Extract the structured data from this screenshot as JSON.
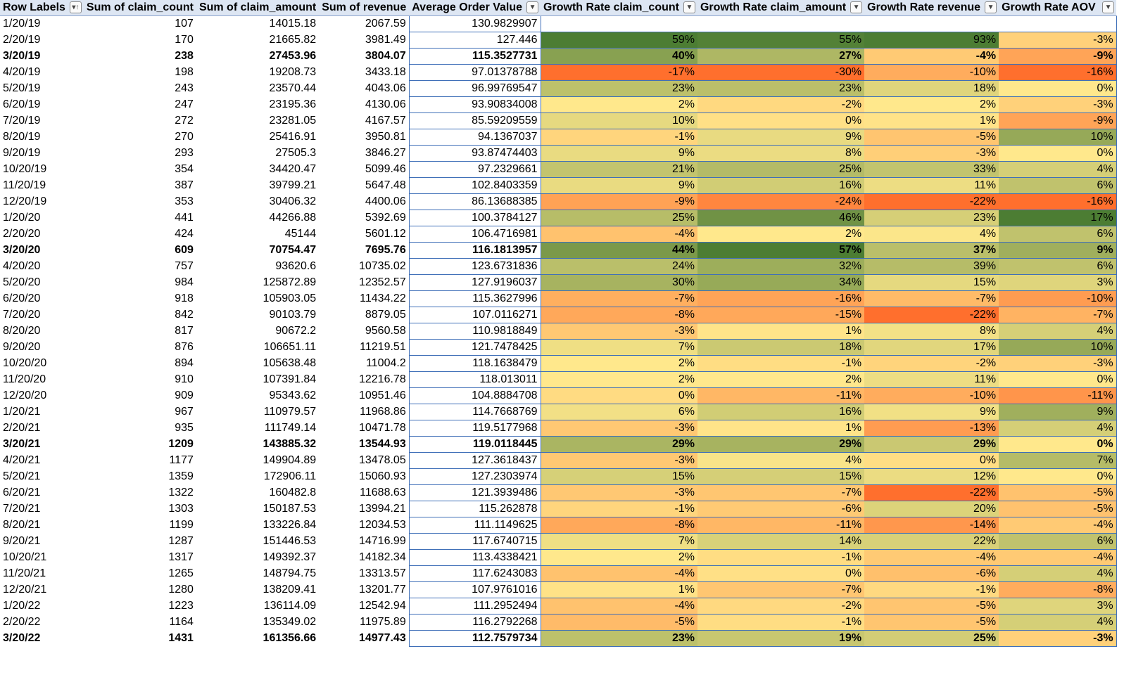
{
  "colors": {
    "border": "#3f6fb8",
    "header_bg": "#dde6f3",
    "scale_low": "#ff6f2d",
    "scale_mid": "#ffe88c",
    "scale_high": "#4c7d33"
  },
  "header": {
    "row_labels": "Row Labels",
    "sum_claim_count": "Sum of claim_count",
    "sum_claim_amount": "Sum of claim_amount",
    "sum_revenue": "Sum of revenue",
    "aov": "Average Order Value",
    "gr_claim_count": "Growth Rate claim_count",
    "gr_claim_amount": "Growth Rate claim_amount",
    "gr_revenue": "Growth Rate revenue",
    "gr_aov": "Growth Rate AOV",
    "sort_filter_icon": "filter-sort-icon",
    "dropdown_icon": "dropdown-arrow-icon"
  },
  "rows": [
    {
      "label": "1/20/19",
      "count": "107",
      "amount": "14015.18",
      "revenue": "2067.59",
      "aov": "130.9829907",
      "g1": "",
      "g2": "",
      "g3": "",
      "g4": "",
      "bold": false
    },
    {
      "label": "2/20/19",
      "count": "170",
      "amount": "21665.82",
      "revenue": "3981.49",
      "aov": "127.446",
      "g1": "59%",
      "g2": "55%",
      "g3": "93%",
      "g4": "-3%",
      "bold": false
    },
    {
      "label": "3/20/19",
      "count": "238",
      "amount": "27453.96",
      "revenue": "3804.07",
      "aov": "115.3527731",
      "g1": "40%",
      "g2": "27%",
      "g3": "-4%",
      "g4": "-9%",
      "bold": true
    },
    {
      "label": "4/20/19",
      "count": "198",
      "amount": "19208.73",
      "revenue": "3433.18",
      "aov": "97.01378788",
      "g1": "-17%",
      "g2": "-30%",
      "g3": "-10%",
      "g4": "-16%",
      "bold": false
    },
    {
      "label": "5/20/19",
      "count": "243",
      "amount": "23570.44",
      "revenue": "4043.06",
      "aov": "96.99769547",
      "g1": "23%",
      "g2": "23%",
      "g3": "18%",
      "g4": "0%",
      "bold": false
    },
    {
      "label": "6/20/19",
      "count": "247",
      "amount": "23195.36",
      "revenue": "4130.06",
      "aov": "93.90834008",
      "g1": "2%",
      "g2": "-2%",
      "g3": "2%",
      "g4": "-3%",
      "bold": false
    },
    {
      "label": "7/20/19",
      "count": "272",
      "amount": "23281.05",
      "revenue": "4167.57",
      "aov": "85.59209559",
      "g1": "10%",
      "g2": "0%",
      "g3": "1%",
      "g4": "-9%",
      "bold": false
    },
    {
      "label": "8/20/19",
      "count": "270",
      "amount": "25416.91",
      "revenue": "3950.81",
      "aov": "94.1367037",
      "g1": "-1%",
      "g2": "9%",
      "g3": "-5%",
      "g4": "10%",
      "bold": false
    },
    {
      "label": "9/20/19",
      "count": "293",
      "amount": "27505.3",
      "revenue": "3846.27",
      "aov": "93.87474403",
      "g1": "9%",
      "g2": "8%",
      "g3": "-3%",
      "g4": "0%",
      "bold": false
    },
    {
      "label": "10/20/19",
      "count": "354",
      "amount": "34420.47",
      "revenue": "5099.46",
      "aov": "97.2329661",
      "g1": "21%",
      "g2": "25%",
      "g3": "33%",
      "g4": "4%",
      "bold": false
    },
    {
      "label": "11/20/19",
      "count": "387",
      "amount": "39799.21",
      "revenue": "5647.48",
      "aov": "102.8403359",
      "g1": "9%",
      "g2": "16%",
      "g3": "11%",
      "g4": "6%",
      "bold": false
    },
    {
      "label": "12/20/19",
      "count": "353",
      "amount": "30406.32",
      "revenue": "4400.06",
      "aov": "86.13688385",
      "g1": "-9%",
      "g2": "-24%",
      "g3": "-22%",
      "g4": "-16%",
      "bold": false
    },
    {
      "label": "1/20/20",
      "count": "441",
      "amount": "44266.88",
      "revenue": "5392.69",
      "aov": "100.3784127",
      "g1": "25%",
      "g2": "46%",
      "g3": "23%",
      "g4": "17%",
      "bold": false
    },
    {
      "label": "2/20/20",
      "count": "424",
      "amount": "45144",
      "revenue": "5601.12",
      "aov": "106.4716981",
      "g1": "-4%",
      "g2": "2%",
      "g3": "4%",
      "g4": "6%",
      "bold": false
    },
    {
      "label": "3/20/20",
      "count": "609",
      "amount": "70754.47",
      "revenue": "7695.76",
      "aov": "116.1813957",
      "g1": "44%",
      "g2": "57%",
      "g3": "37%",
      "g4": "9%",
      "bold": true
    },
    {
      "label": "4/20/20",
      "count": "757",
      "amount": "93620.6",
      "revenue": "10735.02",
      "aov": "123.6731836",
      "g1": "24%",
      "g2": "32%",
      "g3": "39%",
      "g4": "6%",
      "bold": false
    },
    {
      "label": "5/20/20",
      "count": "984",
      "amount": "125872.89",
      "revenue": "12352.57",
      "aov": "127.9196037",
      "g1": "30%",
      "g2": "34%",
      "g3": "15%",
      "g4": "3%",
      "bold": false
    },
    {
      "label": "6/20/20",
      "count": "918",
      "amount": "105903.05",
      "revenue": "11434.22",
      "aov": "115.3627996",
      "g1": "-7%",
      "g2": "-16%",
      "g3": "-7%",
      "g4": "-10%",
      "bold": false
    },
    {
      "label": "7/20/20",
      "count": "842",
      "amount": "90103.79",
      "revenue": "8879.05",
      "aov": "107.0116271",
      "g1": "-8%",
      "g2": "-15%",
      "g3": "-22%",
      "g4": "-7%",
      "bold": false
    },
    {
      "label": "8/20/20",
      "count": "817",
      "amount": "90672.2",
      "revenue": "9560.58",
      "aov": "110.9818849",
      "g1": "-3%",
      "g2": "1%",
      "g3": "8%",
      "g4": "4%",
      "bold": false
    },
    {
      "label": "9/20/20",
      "count": "876",
      "amount": "106651.11",
      "revenue": "11219.51",
      "aov": "121.7478425",
      "g1": "7%",
      "g2": "18%",
      "g3": "17%",
      "g4": "10%",
      "bold": false
    },
    {
      "label": "10/20/20",
      "count": "894",
      "amount": "105638.48",
      "revenue": "11004.2",
      "aov": "118.1638479",
      "g1": "2%",
      "g2": "-1%",
      "g3": "-2%",
      "g4": "-3%",
      "bold": false
    },
    {
      "label": "11/20/20",
      "count": "910",
      "amount": "107391.84",
      "revenue": "12216.78",
      "aov": "118.013011",
      "g1": "2%",
      "g2": "2%",
      "g3": "11%",
      "g4": "0%",
      "bold": false
    },
    {
      "label": "12/20/20",
      "count": "909",
      "amount": "95343.62",
      "revenue": "10951.46",
      "aov": "104.8884708",
      "g1": "0%",
      "g2": "-11%",
      "g3": "-10%",
      "g4": "-11%",
      "bold": false
    },
    {
      "label": "1/20/21",
      "count": "967",
      "amount": "110979.57",
      "revenue": "11968.86",
      "aov": "114.7668769",
      "g1": "6%",
      "g2": "16%",
      "g3": "9%",
      "g4": "9%",
      "bold": false
    },
    {
      "label": "2/20/21",
      "count": "935",
      "amount": "111749.14",
      "revenue": "10471.78",
      "aov": "119.5177968",
      "g1": "-3%",
      "g2": "1%",
      "g3": "-13%",
      "g4": "4%",
      "bold": false
    },
    {
      "label": "3/20/21",
      "count": "1209",
      "amount": "143885.32",
      "revenue": "13544.93",
      "aov": "119.0118445",
      "g1": "29%",
      "g2": "29%",
      "g3": "29%",
      "g4": "0%",
      "bold": true
    },
    {
      "label": "4/20/21",
      "count": "1177",
      "amount": "149904.89",
      "revenue": "13478.05",
      "aov": "127.3618437",
      "g1": "-3%",
      "g2": "4%",
      "g3": "0%",
      "g4": "7%",
      "bold": false
    },
    {
      "label": "5/20/21",
      "count": "1359",
      "amount": "172906.11",
      "revenue": "15060.93",
      "aov": "127.2303974",
      "g1": "15%",
      "g2": "15%",
      "g3": "12%",
      "g4": "0%",
      "bold": false
    },
    {
      "label": "6/20/21",
      "count": "1322",
      "amount": "160482.8",
      "revenue": "11688.63",
      "aov": "121.3939486",
      "g1": "-3%",
      "g2": "-7%",
      "g3": "-22%",
      "g4": "-5%",
      "bold": false
    },
    {
      "label": "7/20/21",
      "count": "1303",
      "amount": "150187.53",
      "revenue": "13994.21",
      "aov": "115.262878",
      "g1": "-1%",
      "g2": "-6%",
      "g3": "20%",
      "g4": "-5%",
      "bold": false
    },
    {
      "label": "8/20/21",
      "count": "1199",
      "amount": "133226.84",
      "revenue": "12034.53",
      "aov": "111.1149625",
      "g1": "-8%",
      "g2": "-11%",
      "g3": "-14%",
      "g4": "-4%",
      "bold": false
    },
    {
      "label": "9/20/21",
      "count": "1287",
      "amount": "151446.53",
      "revenue": "14716.99",
      "aov": "117.6740715",
      "g1": "7%",
      "g2": "14%",
      "g3": "22%",
      "g4": "6%",
      "bold": false
    },
    {
      "label": "10/20/21",
      "count": "1317",
      "amount": "149392.37",
      "revenue": "14182.34",
      "aov": "113.4338421",
      "g1": "2%",
      "g2": "-1%",
      "g3": "-4%",
      "g4": "-4%",
      "bold": false
    },
    {
      "label": "11/20/21",
      "count": "1265",
      "amount": "148794.75",
      "revenue": "13313.57",
      "aov": "117.6243083",
      "g1": "-4%",
      "g2": "0%",
      "g3": "-6%",
      "g4": "4%",
      "bold": false
    },
    {
      "label": "12/20/21",
      "count": "1280",
      "amount": "138209.41",
      "revenue": "13201.77",
      "aov": "107.9761016",
      "g1": "1%",
      "g2": "-7%",
      "g3": "-1%",
      "g4": "-8%",
      "bold": false
    },
    {
      "label": "1/20/22",
      "count": "1223",
      "amount": "136114.09",
      "revenue": "12542.94",
      "aov": "111.2952494",
      "g1": "-4%",
      "g2": "-2%",
      "g3": "-5%",
      "g4": "3%",
      "bold": false
    },
    {
      "label": "2/20/22",
      "count": "1164",
      "amount": "135349.02",
      "revenue": "11975.89",
      "aov": "116.2792268",
      "g1": "-5%",
      "g2": "-1%",
      "g3": "-5%",
      "g4": "4%",
      "bold": false
    },
    {
      "label": "3/20/22",
      "count": "1431",
      "amount": "161356.66",
      "revenue": "14977.43",
      "aov": "112.7579734",
      "g1": "23%",
      "g2": "19%",
      "g3": "25%",
      "g4": "-3%",
      "bold": true
    }
  ]
}
